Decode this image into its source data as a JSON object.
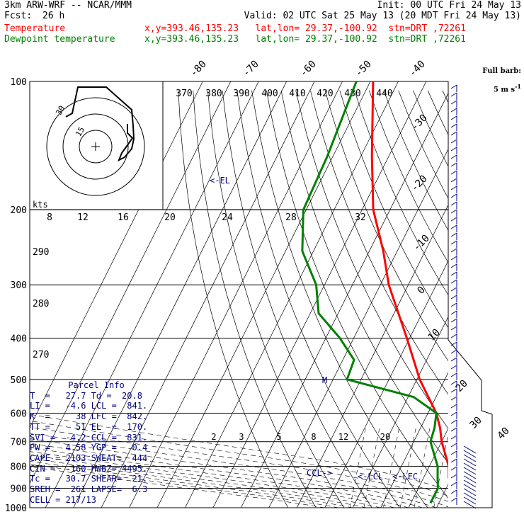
{
  "header": {
    "model": "3km ARW-WRF -- NCAR/MMM",
    "init": "Init: 00 UTC Fri 24 May 13",
    "fcst_label": "Fcst:",
    "fcst_value": "26 h",
    "valid": "Valid: 02 UTC Sat 25 May 13 (20 MDT Fri 24 May 13)",
    "temp_label": "Temperature",
    "dew_label": "Dewpoint temperature",
    "location": "x,y=393.46,135.23   lat,lon= 29.37,-100.92  stn=DRT ,72261"
  },
  "legend": {
    "barb_line1": "Full barb:",
    "barb_line2": "5 m s",
    "barb_sup": "-1"
  },
  "inset": {
    "kts_label": "kts",
    "ring_labels": [
      "30",
      "15"
    ]
  },
  "chart_data": {
    "type": "line",
    "title": "Skew-T log-P sounding",
    "y_axis_pressure_hpa": [
      100,
      200,
      300,
      400,
      500,
      600,
      700,
      800,
      900,
      1000
    ],
    "isotherm_labels_c": [
      "-80",
      "-70",
      "-60",
      "-50",
      "-40",
      "-30",
      "-20",
      "-10",
      "0",
      "10",
      "20",
      "30",
      "40"
    ],
    "theta_labels_k": [
      "370",
      "380",
      "390",
      "400",
      "410",
      "420",
      "430",
      "440"
    ],
    "theta_left_labels": [
      "290",
      "280",
      "270"
    ],
    "mixing_ratio_labels": [
      "2",
      "3",
      "5",
      "8",
      "12",
      "20"
    ],
    "upper_axis_labels": [
      "8",
      "12",
      "16",
      "20",
      "24",
      "28",
      "32"
    ],
    "level_markers": [
      "<-EL",
      "M",
      "CCL->",
      "<-LCL",
      "<-LFC"
    ],
    "series": [
      {
        "name": "Temperature",
        "color": "#ff0000",
        "points": [
          [
            100,
            -79
          ],
          [
            150,
            -66
          ],
          [
            200,
            -56
          ],
          [
            250,
            -45
          ],
          [
            300,
            -37
          ],
          [
            400,
            -21
          ],
          [
            500,
            -9
          ],
          [
            600,
            3
          ],
          [
            650,
            7
          ],
          [
            700,
            10
          ],
          [
            800,
            17
          ],
          [
            850,
            19
          ],
          [
            900,
            24
          ],
          [
            950,
            29
          ],
          [
            975,
            30
          ]
        ]
      },
      {
        "name": "Dewpoint temperature",
        "color": "#008000",
        "points": [
          [
            100,
            -85
          ],
          [
            150,
            -82
          ],
          [
            200,
            -81
          ],
          [
            250,
            -74
          ],
          [
            300,
            -63
          ],
          [
            350,
            -57
          ],
          [
            400,
            -45
          ],
          [
            450,
            -36
          ],
          [
            500,
            -35
          ],
          [
            550,
            -8
          ],
          [
            600,
            3
          ],
          [
            650,
            5
          ],
          [
            700,
            6
          ],
          [
            800,
            13
          ],
          [
            850,
            15
          ],
          [
            900,
            17
          ],
          [
            950,
            17
          ],
          [
            975,
            17
          ]
        ]
      }
    ]
  },
  "parcel_info": {
    "title": "Parcel Info",
    "rows": [
      "T  =   27.7 Td =  20.8",
      "LI =   -4.6 LCL =  841.",
      "K  =     38 LFC =  842.",
      "TT =     51 EL  =  170.",
      "SVI =  -4.2 CCL =  831.",
      "PW =   4.58 YGP =   0.4",
      "CAPE = 2103 SWEAT=  444",
      "CIN =  -160 HWBZ= 4495.",
      "Tc =   30.7 SHEAR=  21.",
      "SREH =  261 LAPSE=  6.3",
      "CELL = 217/13"
    ]
  }
}
